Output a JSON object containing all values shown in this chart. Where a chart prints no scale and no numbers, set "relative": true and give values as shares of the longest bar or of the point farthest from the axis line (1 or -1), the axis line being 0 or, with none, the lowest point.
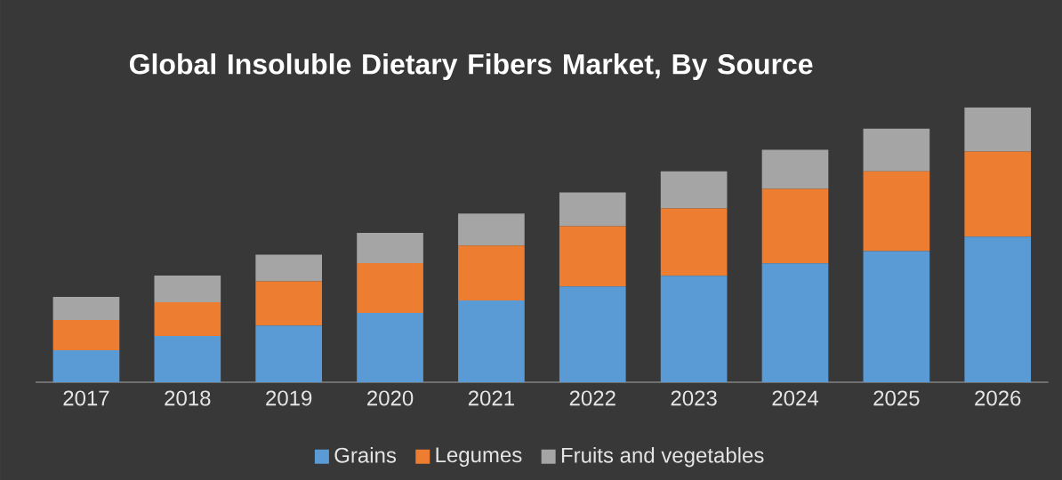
{
  "chart_data": {
    "type": "bar",
    "title": "Global Insoluble Dietary Fibers Market, By Source",
    "categories": [
      "2017",
      "2018",
      "2019",
      "2020",
      "2021",
      "2022",
      "2023",
      "2024",
      "2025",
      "2026"
    ],
    "stacked": true,
    "relative": true,
    "legend": "bottom",
    "series": [
      {
        "name": "Grains",
        "color": "#5b9bd5",
        "values": [
          0.116,
          0.168,
          0.206,
          0.252,
          0.297,
          0.348,
          0.387,
          0.432,
          0.477,
          0.529
        ]
      },
      {
        "name": "Legumes",
        "color": "#ed7d31",
        "values": [
          0.11,
          0.123,
          0.161,
          0.181,
          0.2,
          0.219,
          0.245,
          0.271,
          0.29,
          0.31
        ]
      },
      {
        "name": "Fruits and vegetables",
        "color": "#a5a5a5",
        "values": [
          0.084,
          0.097,
          0.097,
          0.11,
          0.116,
          0.123,
          0.135,
          0.142,
          0.155,
          0.161
        ]
      }
    ]
  }
}
